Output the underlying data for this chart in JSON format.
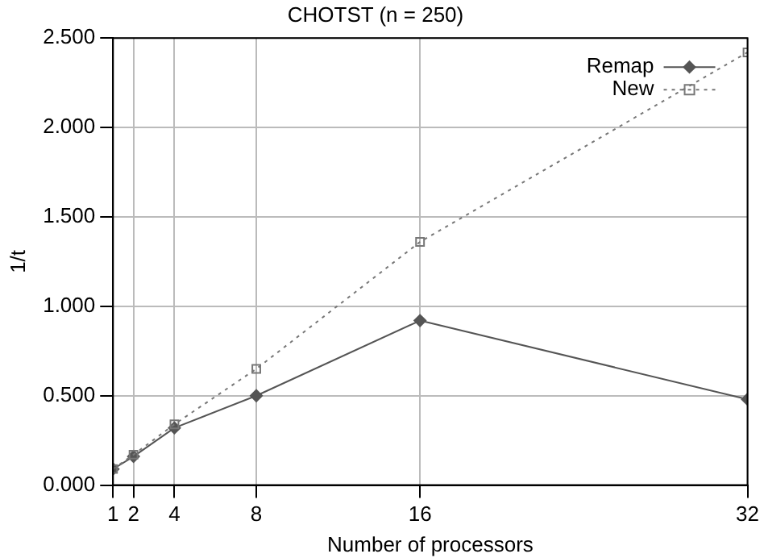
{
  "chart_data": {
    "type": "line",
    "title": "CHOTST (n = 250)",
    "xlabel": "Number of processors",
    "ylabel": "1/t",
    "x": [
      1,
      2,
      4,
      8,
      16,
      32
    ],
    "xlim": [
      1,
      32
    ],
    "xticks": [
      1,
      2,
      4,
      8,
      16,
      32
    ],
    "ylim": [
      0,
      2.5
    ],
    "yticks": [
      {
        "value": 0,
        "label": "0.000"
      },
      {
        "value": 0.5,
        "label": "0.500"
      },
      {
        "value": 1,
        "label": "1.000"
      },
      {
        "value": 1.5,
        "label": "1.500"
      },
      {
        "value": 2,
        "label": "2.000"
      },
      {
        "value": 2.5,
        "label": "2.500"
      }
    ],
    "grid": true,
    "legend": "top right",
    "series": [
      {
        "name": "Remap",
        "color": "#555555",
        "marker": "diamond",
        "line_style": "solid",
        "values": [
          0.09,
          0.16,
          0.32,
          0.5,
          0.92,
          0.48
        ]
      },
      {
        "name": "New",
        "color": "#777777",
        "marker": "square",
        "line_style": "dotted",
        "values": [
          0.09,
          0.17,
          0.34,
          0.65,
          1.36,
          2.42
        ]
      }
    ]
  }
}
